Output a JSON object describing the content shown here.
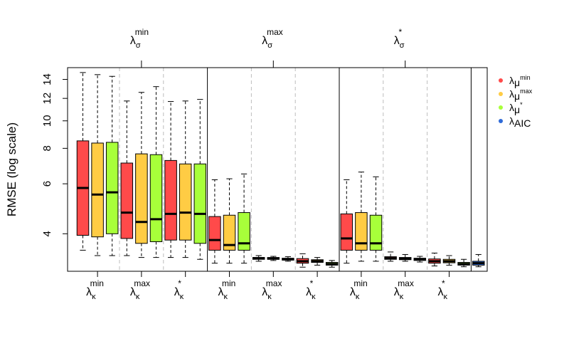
{
  "chart_data": {
    "type": "box",
    "ylabel": "RMSE (log scale)",
    "ylim": [
      2.95,
      15.4
    ],
    "yticks": [
      4,
      6,
      8,
      10,
      12,
      14
    ],
    "grid": false,
    "legend_position": "right",
    "legend": [
      {
        "base": "λ",
        "sub": "μ",
        "sup": "min",
        "color": "#ff4a4a"
      },
      {
        "base": "λ",
        "sub": "μ",
        "sup": "max",
        "color": "#ffcc44"
      },
      {
        "base": "λ",
        "sub": "μ",
        "sup": "*",
        "color": "#a8ff3a"
      },
      {
        "base": "λ",
        "sub": "AIC",
        "sup": "",
        "color": "#2f6bd8"
      }
    ],
    "top_groups": [
      {
        "base": "λ",
        "sub": "σ",
        "sup": "min"
      },
      {
        "base": "λ",
        "sub": "σ",
        "sup": "max"
      },
      {
        "base": "λ",
        "sub": "σ",
        "sup": "*"
      }
    ],
    "bottom_groups": [
      {
        "base": "λ",
        "sub": "κ",
        "sup": "min"
      },
      {
        "base": "λ",
        "sub": "κ",
        "sup": "max"
      },
      {
        "base": "λ",
        "sub": "κ",
        "sup": "*"
      },
      {
        "base": "λ",
        "sub": "κ",
        "sup": "min"
      },
      {
        "base": "λ",
        "sub": "κ",
        "sup": "max"
      },
      {
        "base": "λ",
        "sub": "κ",
        "sup": "*"
      },
      {
        "base": "λ",
        "sub": "κ",
        "sup": "min"
      },
      {
        "base": "λ",
        "sub": "κ",
        "sup": "max"
      },
      {
        "base": "λ",
        "sub": "κ",
        "sup": "*"
      }
    ],
    "boxes": [
      {
        "color": "#ff4a4a",
        "whisker_low": 3.5,
        "q1": 3.95,
        "median": 5.8,
        "q3": 8.5,
        "whisker_high": 14.8
      },
      {
        "color": "#ffcc44",
        "whisker_low": 3.35,
        "q1": 3.9,
        "median": 5.5,
        "q3": 8.35,
        "whisker_high": 14.55
      },
      {
        "color": "#a8ff3a",
        "whisker_low": 3.35,
        "q1": 4.0,
        "median": 5.6,
        "q3": 8.4,
        "whisker_high": 14.35
      },
      {
        "color": "#ff4a4a",
        "whisker_low": 3.35,
        "q1": 3.85,
        "median": 4.75,
        "q3": 7.1,
        "whisker_high": 11.75
      },
      {
        "color": "#ffcc44",
        "whisker_low": 3.3,
        "q1": 3.7,
        "median": 4.4,
        "q3": 7.65,
        "whisker_high": 12.6
      },
      {
        "color": "#a8ff3a",
        "whisker_low": 3.3,
        "q1": 3.75,
        "median": 4.5,
        "q3": 7.6,
        "whisker_high": 13.2
      },
      {
        "color": "#ff4a4a",
        "whisker_low": 3.3,
        "q1": 3.8,
        "median": 4.7,
        "q3": 7.25,
        "whisker_high": 11.7
      },
      {
        "color": "#ffcc44",
        "whisker_low": 3.3,
        "q1": 3.8,
        "median": 4.75,
        "q3": 7.05,
        "whisker_high": 11.75
      },
      {
        "color": "#a8ff3a",
        "whisker_low": 3.25,
        "q1": 3.7,
        "median": 4.7,
        "q3": 7.05,
        "whisker_high": 11.9
      },
      {
        "color": "#ff4a4a",
        "whisker_low": 3.15,
        "q1": 3.5,
        "median": 3.8,
        "q3": 4.6,
        "whisker_high": 6.2
      },
      {
        "color": "#ffcc44",
        "whisker_low": 3.15,
        "q1": 3.5,
        "median": 3.65,
        "q3": 4.65,
        "whisker_high": 6.25
      },
      {
        "color": "#a8ff3a",
        "whisker_low": 3.15,
        "q1": 3.5,
        "median": 3.7,
        "q3": 4.75,
        "whisker_high": 6.5
      },
      {
        "color": "#ff4a4a",
        "whisker_low": 3.2,
        "q1": 3.25,
        "median": 3.28,
        "q3": 3.3,
        "whisker_high": 3.35
      },
      {
        "color": "#ffcc44",
        "whisker_low": 3.22,
        "q1": 3.25,
        "median": 3.27,
        "q3": 3.3,
        "whisker_high": 3.33
      },
      {
        "color": "#a8ff3a",
        "whisker_low": 3.2,
        "q1": 3.23,
        "median": 3.25,
        "q3": 3.28,
        "whisker_high": 3.32
      },
      {
        "color": "#ff4a4a",
        "whisker_low": 3.05,
        "q1": 3.15,
        "median": 3.2,
        "q3": 3.27,
        "whisker_high": 3.4
      },
      {
        "color": "#ffcc44",
        "whisker_low": 3.1,
        "q1": 3.17,
        "median": 3.2,
        "q3": 3.24,
        "whisker_high": 3.3
      },
      {
        "color": "#a8ff3a",
        "whisker_low": 3.05,
        "q1": 3.1,
        "median": 3.13,
        "q3": 3.17,
        "whisker_high": 3.22
      },
      {
        "color": "#ff4a4a",
        "whisker_low": 3.15,
        "q1": 3.5,
        "median": 3.85,
        "q3": 4.7,
        "whisker_high": 6.2
      },
      {
        "color": "#ffcc44",
        "whisker_low": 3.2,
        "q1": 3.5,
        "median": 3.7,
        "q3": 4.75,
        "whisker_high": 6.6
      },
      {
        "color": "#a8ff3a",
        "whisker_low": 3.2,
        "q1": 3.5,
        "median": 3.7,
        "q3": 4.65,
        "whisker_high": 6.35
      },
      {
        "color": "#ff4a4a",
        "whisker_low": 3.2,
        "q1": 3.25,
        "median": 3.28,
        "q3": 3.32,
        "whisker_high": 3.45
      },
      {
        "color": "#ffcc44",
        "whisker_low": 3.2,
        "q1": 3.24,
        "median": 3.27,
        "q3": 3.3,
        "whisker_high": 3.38
      },
      {
        "color": "#a8ff3a",
        "whisker_low": 3.18,
        "q1": 3.22,
        "median": 3.25,
        "q3": 3.28,
        "whisker_high": 3.33
      },
      {
        "color": "#ff4a4a",
        "whisker_low": 3.08,
        "q1": 3.15,
        "median": 3.2,
        "q3": 3.26,
        "whisker_high": 3.42
      },
      {
        "color": "#ffcc44",
        "whisker_low": 3.1,
        "q1": 3.16,
        "median": 3.2,
        "q3": 3.25,
        "whisker_high": 3.35
      },
      {
        "color": "#a8ff3a",
        "whisker_low": 3.06,
        "q1": 3.1,
        "median": 3.13,
        "q3": 3.17,
        "whisker_high": 3.25
      },
      {
        "color": "#2f6bd8",
        "whisker_low": 3.06,
        "q1": 3.1,
        "median": 3.15,
        "q3": 3.2,
        "whisker_high": 3.38
      }
    ]
  }
}
